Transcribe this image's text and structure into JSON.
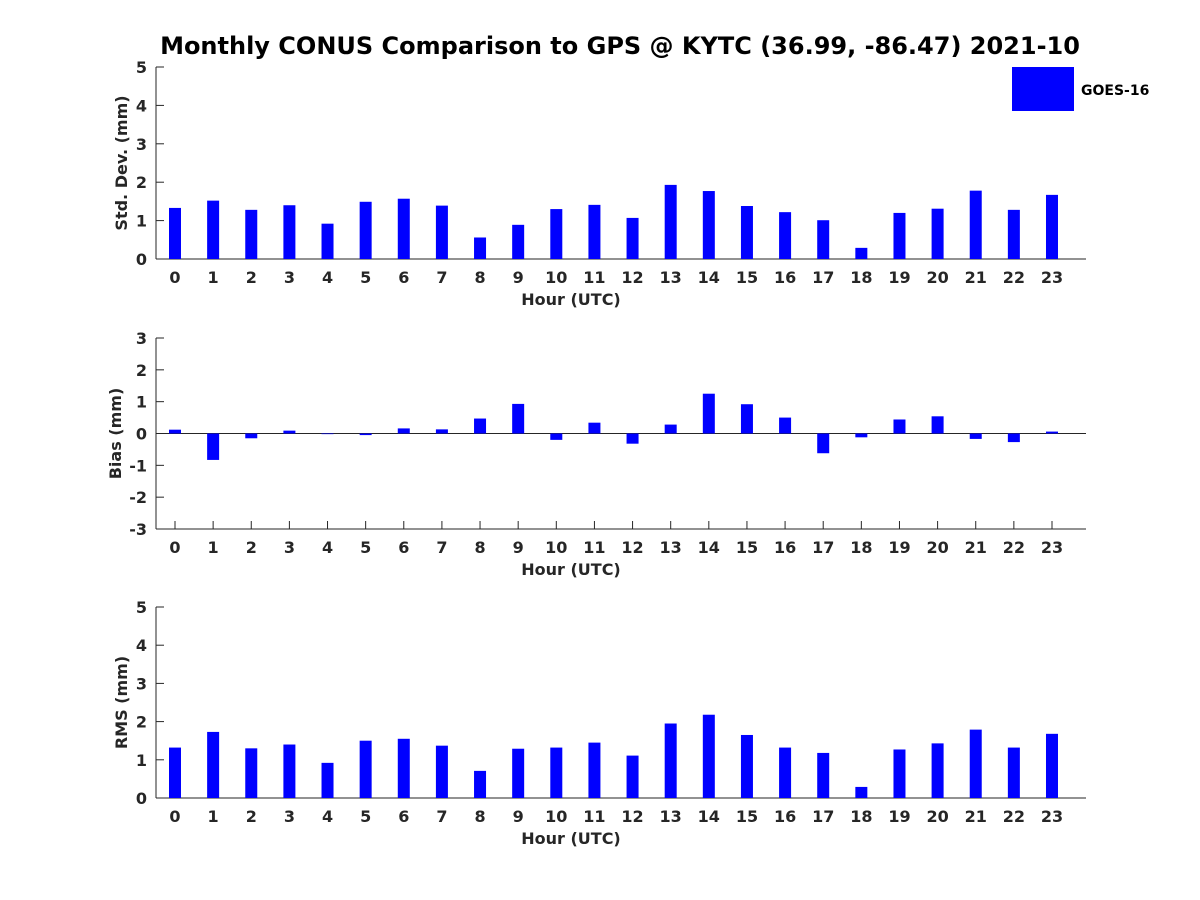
{
  "title": "Monthly CONUS Comparison to GPS @ KYTC (36.99, -86.47) 2021-10",
  "legend": {
    "label": "GOES-16",
    "color": "#0000ff",
    "placement": "top-right"
  },
  "chart_data": [
    {
      "type": "bar",
      "categories": [
        "0",
        "1",
        "2",
        "3",
        "4",
        "5",
        "6",
        "7",
        "8",
        "9",
        "10",
        "11",
        "12",
        "13",
        "14",
        "15",
        "16",
        "17",
        "18",
        "19",
        "20",
        "21",
        "22",
        "23"
      ],
      "series": [
        {
          "name": "GOES-16",
          "values": [
            1.33,
            1.52,
            1.28,
            1.4,
            0.92,
            1.49,
            1.57,
            1.39,
            0.56,
            0.89,
            1.3,
            1.41,
            1.07,
            1.93,
            1.77,
            1.38,
            1.22,
            1.01,
            0.29,
            1.2,
            1.31,
            1.78,
            1.28,
            1.67
          ]
        }
      ],
      "xlabel": "Hour (UTC)",
      "ylabel": "Std. Dev. (mm)",
      "ylim": [
        0,
        5
      ],
      "yticks": [
        "0",
        "1",
        "2",
        "3",
        "4",
        "5"
      ],
      "grid": false
    },
    {
      "type": "bar",
      "categories": [
        "0",
        "1",
        "2",
        "3",
        "4",
        "5",
        "6",
        "7",
        "8",
        "9",
        "10",
        "11",
        "12",
        "13",
        "14",
        "15",
        "16",
        "17",
        "18",
        "19",
        "20",
        "21",
        "22",
        "23"
      ],
      "series": [
        {
          "name": "GOES-16",
          "values": [
            0.12,
            -0.83,
            -0.15,
            0.09,
            -0.02,
            -0.05,
            0.16,
            0.13,
            0.47,
            0.93,
            -0.2,
            0.34,
            -0.32,
            0.28,
            1.25,
            0.92,
            0.5,
            -0.62,
            -0.12,
            0.44,
            0.54,
            -0.17,
            -0.27,
            0.06
          ]
        }
      ],
      "xlabel": "Hour (UTC)",
      "ylabel": "Bias (mm)",
      "ylim": [
        -3,
        3
      ],
      "yticks": [
        "-3",
        "-2",
        "-1",
        "0",
        "1",
        "2",
        "3"
      ],
      "grid": false
    },
    {
      "type": "bar",
      "categories": [
        "0",
        "1",
        "2",
        "3",
        "4",
        "5",
        "6",
        "7",
        "8",
        "9",
        "10",
        "11",
        "12",
        "13",
        "14",
        "15",
        "16",
        "17",
        "18",
        "19",
        "20",
        "21",
        "22",
        "23"
      ],
      "series": [
        {
          "name": "GOES-16",
          "values": [
            1.32,
            1.73,
            1.3,
            1.4,
            0.92,
            1.5,
            1.55,
            1.37,
            0.71,
            1.29,
            1.32,
            1.45,
            1.11,
            1.95,
            2.18,
            1.65,
            1.32,
            1.18,
            0.29,
            1.27,
            1.43,
            1.79,
            1.32,
            1.68
          ]
        }
      ],
      "xlabel": "Hour (UTC)",
      "ylabel": "RMS (mm)",
      "ylim": [
        0,
        5
      ],
      "yticks": [
        "0",
        "1",
        "2",
        "3",
        "4",
        "5"
      ],
      "grid": false
    }
  ]
}
